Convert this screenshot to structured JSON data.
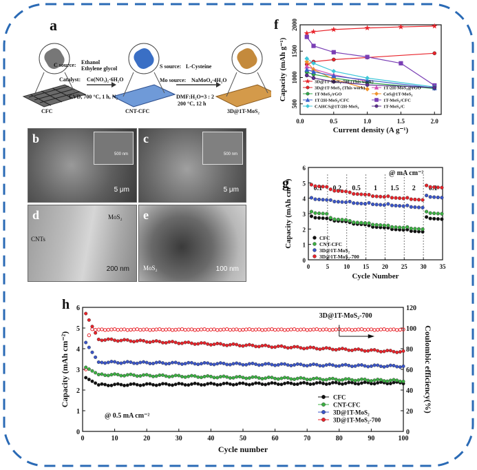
{
  "panel_a": {
    "label": "a",
    "stage_labels": [
      "CFC",
      "CNT-CFC",
      "3D@1T-MoS₂"
    ],
    "step1": {
      "c_source_label": "C source:",
      "c_source": [
        "Ethanol",
        "Ethylene glycol"
      ],
      "catalyst_label": "Catalyst:",
      "catalyst": "Co(NO₃)₂·6H₂O",
      "condition": "CVD, 700 °C, 1 h, N₂"
    },
    "step2": {
      "s_source_label": "S source:",
      "s_source": "L-Cysteine",
      "mo_source_label": "Mo source:",
      "mo_source": "NaMoO₄·4H₂O",
      "solvent": "DMF:H₂O=3 : 2",
      "condition": "200 °C, 12 h"
    }
  },
  "micrographs": [
    {
      "label": "b",
      "scale_bar": "5 μm",
      "inset_scale": "500 nm",
      "annotations": []
    },
    {
      "label": "c",
      "scale_bar": "5 μm",
      "inset_scale": "500 nm",
      "annotations": []
    },
    {
      "label": "d",
      "scale_bar": "200 nm",
      "annotations": [
        "MoS₂",
        "CNTs"
      ]
    },
    {
      "label": "e",
      "scale_bar": "100 nm",
      "annotations": [
        "MoS₂"
      ]
    }
  ],
  "chart_data": [
    {
      "id": "f",
      "label": "f",
      "type": "line",
      "xlabel": "Current density (A g⁻¹)",
      "ylabel": "Capacity (mAh g⁻¹)",
      "xlim": [
        0,
        2.1
      ],
      "ylim": [
        300,
        2000
      ],
      "xticks": [
        0.0,
        0.5,
        1.0,
        1.5,
        2.0
      ],
      "yticks": [
        500,
        1000,
        1500,
        2000
      ],
      "legend_position": "bottom-left",
      "series": [
        {
          "name": "3D@1T-MoS₂-700 (This work)",
          "color": "#e8232a",
          "marker": "star",
          "x": [
            0.1,
            0.2,
            0.5,
            1.0,
            1.5,
            2.0
          ],
          "y": [
            1840,
            1870,
            1910,
            1940,
            1960,
            1975
          ]
        },
        {
          "name": "3D@1T-MoS₂ (This work)",
          "color": "#e8232a",
          "marker": "circle",
          "x": [
            0.1,
            0.2,
            0.5,
            1.0,
            2.0
          ],
          "y": [
            1250,
            1300,
            1340,
            1380,
            1460
          ]
        },
        {
          "name": "1T/2H-MoS₂@rGO",
          "color": "#d24fb4",
          "marker": "triangle",
          "x": [
            0.1,
            0.2,
            0.5,
            1.0
          ],
          "y": [
            1210,
            1160,
            1050,
            930
          ]
        },
        {
          "name": "1T-MoS₂/rGO",
          "color": "#2ea84b",
          "marker": "circle",
          "x": [
            0.1,
            0.2,
            0.5,
            1.0,
            2.0
          ],
          "y": [
            1100,
            1060,
            990,
            900,
            790
          ]
        },
        {
          "name": "CoS@1T-MoS₂",
          "color": "#f0922b",
          "marker": "diamond",
          "x": [
            0.1,
            0.2,
            0.5,
            1.0
          ],
          "y": [
            1300,
            1150,
            970,
            780
          ]
        },
        {
          "name": "1T/2H-MoS₂/CFC",
          "color": "#3b5fc9",
          "marker": "triangle",
          "x": [
            0.1,
            0.2,
            0.5,
            1.0,
            2.0
          ],
          "y": [
            1150,
            1110,
            1030,
            950,
            800
          ]
        },
        {
          "name": "1T-MoS₂/CFC",
          "color": "#7a3fb5",
          "marker": "square",
          "x": [
            0.1,
            0.2,
            0.5,
            1.0,
            1.5,
            2.0
          ],
          "y": [
            1770,
            1600,
            1480,
            1390,
            1270,
            850
          ]
        },
        {
          "name": "CAHCS@1T/2H-MoS₂",
          "color": "#3fc6d8",
          "marker": "diamond",
          "x": [
            0.1,
            0.2,
            0.5,
            1.0,
            2.0
          ],
          "y": [
            1360,
            1270,
            1120,
            990,
            820
          ]
        },
        {
          "name": "1T-MoS₂/C",
          "color": "#5b2d8e",
          "marker": "circle",
          "x": [
            0.1,
            0.2,
            0.5,
            1.0,
            2.0
          ],
          "y": [
            1040,
            990,
            920,
            860,
            810
          ]
        }
      ]
    },
    {
      "id": "g",
      "label": "g",
      "type": "scatter",
      "xlabel": "Cycle Number",
      "ylabel": "Capacity (mAh cm⁻²)",
      "xlim": [
        0,
        35
      ],
      "ylim": [
        0,
        6
      ],
      "xticks": [
        0,
        5,
        10,
        15,
        20,
        25,
        30,
        35
      ],
      "yticks": [
        0,
        1,
        2,
        3,
        4,
        5,
        6
      ],
      "rate_annotation": "@ mA cm⁻²",
      "rate_labels": [
        {
          "x": 2.5,
          "text": "0.1"
        },
        {
          "x": 7.5,
          "text": "0.2"
        },
        {
          "x": 12.5,
          "text": "0.5"
        },
        {
          "x": 17.5,
          "text": "1"
        },
        {
          "x": 22.5,
          "text": "1.5"
        },
        {
          "x": 27.5,
          "text": "2"
        },
        {
          "x": 32.5,
          "text": "0.1"
        }
      ],
      "dividers": [
        5,
        10,
        15,
        20,
        25,
        30
      ],
      "legend_position": "bottom-left",
      "series": [
        {
          "name": "CFC",
          "color": "#111111",
          "step_values": [
            2.75,
            2.55,
            2.35,
            2.15,
            2.0,
            1.88,
            2.7
          ]
        },
        {
          "name": "CNT-CFC",
          "color": "#3cb043",
          "step_values": [
            3.05,
            2.65,
            2.45,
            2.3,
            2.15,
            2.05,
            3.05
          ]
        },
        {
          "name": "3D@1T-MoS₂",
          "color": "#3b56c9",
          "step_values": [
            3.95,
            3.8,
            3.7,
            3.62,
            3.55,
            3.45,
            4.1
          ]
        },
        {
          "name": "3D@1T-MoS₂-700",
          "color": "#e8232a",
          "step_values": [
            4.8,
            4.5,
            4.3,
            4.15,
            4.05,
            3.95,
            4.75
          ]
        }
      ]
    },
    {
      "id": "h",
      "label": "h",
      "type": "scatter",
      "xlabel": "Cycle number",
      "ylabel": "Capacity (mAh cm⁻²)",
      "y2label": "Coulombic efficiency(%)",
      "xlim": [
        0,
        100
      ],
      "ylim": [
        0,
        6
      ],
      "y2lim": [
        0,
        120
      ],
      "xticks": [
        0,
        10,
        20,
        30,
        40,
        50,
        60,
        70,
        80,
        90,
        100
      ],
      "yticks": [
        0,
        1,
        2,
        3,
        4,
        5,
        6
      ],
      "y2ticks": [
        0,
        20,
        40,
        60,
        80,
        100,
        120
      ],
      "rate_annotation": "@ 0.5 mA cm⁻²",
      "ce_label": "3D@1T-MoS₂-700",
      "ce_values": {
        "start": 98,
        "level": 98.5
      },
      "legend_position": "bottom-right",
      "series": [
        {
          "name": "CFC",
          "color": "#111111",
          "start": 2.6,
          "settle": 2.25,
          "end": 2.35
        },
        {
          "name": "CNT-CFC",
          "color": "#3cb043",
          "start": 3.1,
          "settle": 2.75,
          "end": 2.45
        },
        {
          "name": "3D@1T-MoS₂",
          "color": "#3b56c9",
          "start": 4.3,
          "settle": 3.35,
          "end": 3.15
        },
        {
          "name": "3D@1T-MoS₂-700",
          "color": "#e8232a",
          "start": 5.7,
          "settle": 4.45,
          "end": 3.85
        }
      ]
    }
  ]
}
